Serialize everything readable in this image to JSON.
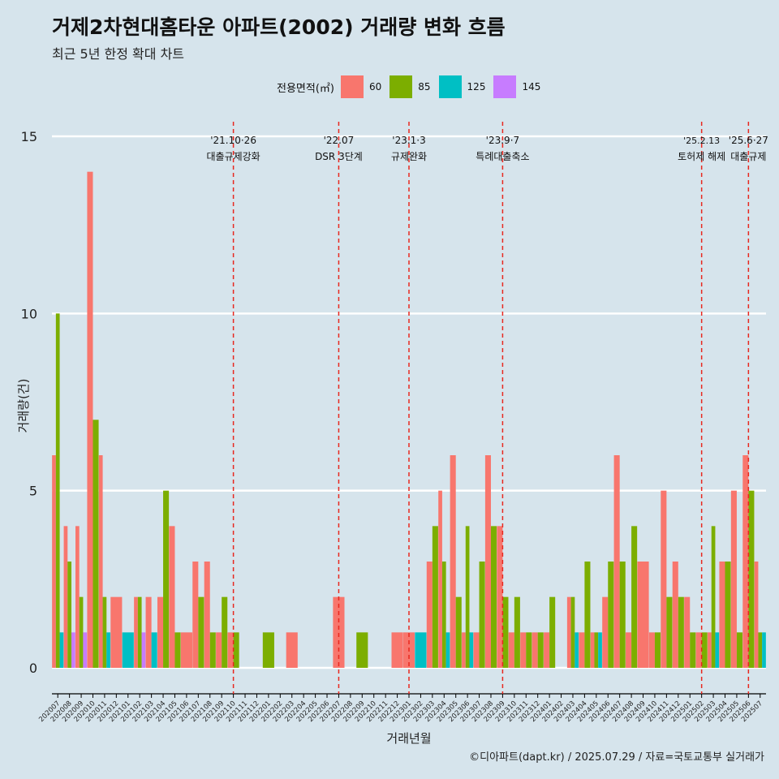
{
  "title": "거제2차현대홈타운 아파트(2002) 거래량 변화 흐름",
  "subtitle": "최근 5년 한정 확대 차트",
  "caption": "©디아파트(dapt.kr) / 2025.07.29 / 자료=국토교통부 실거래가",
  "colors": {
    "background": "#d6e4ec",
    "gridline": "#ffffff",
    "event_line": "#e8281f",
    "axis": "#000000"
  },
  "chart_data": {
    "type": "bar",
    "xlabel": "거래년월",
    "ylabel": "거래량(건)",
    "ylim": [
      0,
      15
    ],
    "yticks": [
      0,
      5,
      10,
      15
    ],
    "grid": true,
    "legend": {
      "title": "전용면적(㎡)",
      "position": "top"
    },
    "months": [
      "202007",
      "202008",
      "202009",
      "202010",
      "202011",
      "202012",
      "202101",
      "202102",
      "202103",
      "202104",
      "202105",
      "202106",
      "202107",
      "202108",
      "202109",
      "202110",
      "202111",
      "202112",
      "202201",
      "202202",
      "202203",
      "202204",
      "202205",
      "202206",
      "202207",
      "202208",
      "202209",
      "202210",
      "202211",
      "202212",
      "202301",
      "202302",
      "202303",
      "202304",
      "202305",
      "202306",
      "202307",
      "202308",
      "202309",
      "202310",
      "202311",
      "202312",
      "202401",
      "202402",
      "202403",
      "202404",
      "202405",
      "202406",
      "202407",
      "202408",
      "202409",
      "202410",
      "202411",
      "202412",
      "202501",
      "202502",
      "202503",
      "202504",
      "202505",
      "202506",
      "202507"
    ],
    "series": [
      {
        "name": "60",
        "color": "#f8766d",
        "values": [
          6,
          4,
          4,
          14,
          6,
          2,
          0,
          2,
          2,
          2,
          4,
          1,
          3,
          3,
          1,
          1,
          0,
          0,
          0,
          0,
          1,
          0,
          0,
          0,
          2,
          0,
          0,
          0,
          0,
          1,
          1,
          0,
          3,
          5,
          6,
          1,
          1,
          6,
          4,
          1,
          1,
          1,
          1,
          0,
          2,
          1,
          1,
          2,
          6,
          1,
          3,
          1,
          5,
          3,
          2,
          1,
          1,
          3,
          5,
          6,
          3
        ]
      },
      {
        "name": "85",
        "color": "#7cae00",
        "values": [
          10,
          3,
          2,
          7,
          2,
          0,
          0,
          2,
          0,
          5,
          1,
          0,
          2,
          1,
          2,
          1,
          0,
          0,
          1,
          0,
          0,
          0,
          0,
          0,
          0,
          0,
          1,
          0,
          0,
          0,
          0,
          0,
          4,
          3,
          2,
          4,
          3,
          4,
          2,
          2,
          1,
          1,
          2,
          0,
          2,
          3,
          1,
          3,
          3,
          4,
          0,
          1,
          2,
          2,
          1,
          1,
          4,
          3,
          1,
          5,
          1
        ]
      },
      {
        "name": "125",
        "color": "#00bfc4",
        "values": [
          1,
          0,
          0,
          0,
          1,
          0,
          1,
          0,
          1,
          0,
          0,
          0,
          0,
          0,
          0,
          0,
          0,
          0,
          0,
          0,
          0,
          0,
          0,
          0,
          0,
          0,
          0,
          0,
          0,
          0,
          0,
          1,
          0,
          1,
          0,
          1,
          0,
          0,
          0,
          0,
          0,
          0,
          0,
          0,
          1,
          0,
          1,
          0,
          0,
          0,
          0,
          0,
          0,
          0,
          0,
          0,
          1,
          0,
          0,
          0,
          1
        ]
      },
      {
        "name": "145",
        "color": "#c77cff",
        "values": [
          0,
          1,
          1,
          0,
          0,
          0,
          0,
          1,
          0,
          0,
          0,
          0,
          0,
          0,
          0,
          0,
          0,
          0,
          0,
          0,
          0,
          0,
          0,
          0,
          0,
          0,
          0,
          0,
          0,
          0,
          0,
          0,
          0,
          0,
          0,
          0,
          0,
          0,
          0,
          0,
          0,
          0,
          0,
          0,
          0,
          0,
          0,
          0,
          0,
          0,
          0,
          0,
          0,
          0,
          0,
          0,
          0,
          0,
          0,
          0,
          0
        ]
      }
    ],
    "events": [
      {
        "month": "202110",
        "date": "'21.10·26",
        "label": "대출규제강화"
      },
      {
        "month": "202207",
        "date": "'22.07",
        "label": "DSR 3단계"
      },
      {
        "month": "202301",
        "date": "'23.1·3",
        "label": "규제완화"
      },
      {
        "month": "202309",
        "date": "'23.9·7",
        "label": "특례대출축소"
      },
      {
        "month": "202502",
        "date": "'25.2.13",
        "label": "토허제 해제"
      },
      {
        "month": "202506",
        "date": "'25.6·27",
        "label": "대출규제"
      }
    ]
  }
}
